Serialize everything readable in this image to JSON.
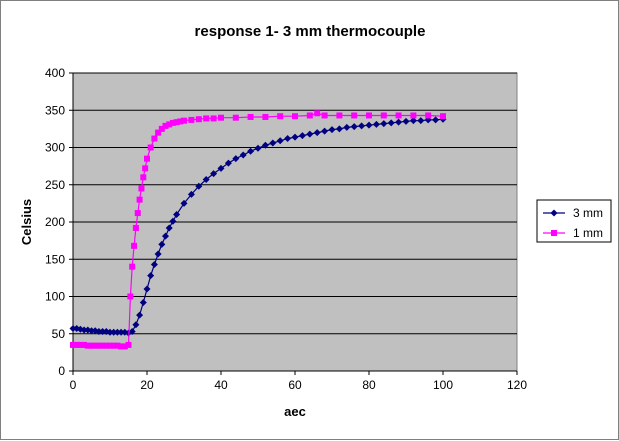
{
  "chart_data": {
    "type": "line",
    "title": "response 1- 3 mm thermocouple",
    "xlabel": "aec",
    "ylabel": "Celsius",
    "xlim": [
      0,
      120
    ],
    "ylim": [
      0,
      400
    ],
    "xticks": [
      0,
      20,
      40,
      60,
      80,
      100,
      120
    ],
    "yticks": [
      0,
      50,
      100,
      150,
      200,
      250,
      300,
      350,
      400
    ],
    "grid": "horizontal",
    "plot_background": "#c0c0c0",
    "legend_position": "right",
    "series": [
      {
        "name": "3 mm",
        "color": "#000080",
        "marker": "diamond",
        "points": [
          [
            0,
            57
          ],
          [
            1,
            57
          ],
          [
            2,
            56
          ],
          [
            3,
            55
          ],
          [
            4,
            55
          ],
          [
            5,
            54
          ],
          [
            6,
            54
          ],
          [
            7,
            53
          ],
          [
            8,
            53
          ],
          [
            9,
            53
          ],
          [
            10,
            52
          ],
          [
            11,
            52
          ],
          [
            12,
            52
          ],
          [
            13,
            52
          ],
          [
            14,
            52
          ],
          [
            15,
            51
          ],
          [
            16,
            53
          ],
          [
            17,
            62
          ],
          [
            18,
            75
          ],
          [
            19,
            92
          ],
          [
            20,
            110
          ],
          [
            21,
            128
          ],
          [
            22,
            143
          ],
          [
            23,
            157
          ],
          [
            24,
            170
          ],
          [
            25,
            181
          ],
          [
            26,
            192
          ],
          [
            27,
            201
          ],
          [
            28,
            210
          ],
          [
            30,
            225
          ],
          [
            32,
            237
          ],
          [
            34,
            248
          ],
          [
            36,
            257
          ],
          [
            38,
            265
          ],
          [
            40,
            272
          ],
          [
            42,
            279
          ],
          [
            44,
            285
          ],
          [
            46,
            290
          ],
          [
            48,
            295
          ],
          [
            50,
            299
          ],
          [
            52,
            303
          ],
          [
            54,
            306
          ],
          [
            56,
            309
          ],
          [
            58,
            312
          ],
          [
            60,
            314
          ],
          [
            62,
            316
          ],
          [
            64,
            318
          ],
          [
            66,
            320
          ],
          [
            68,
            322
          ],
          [
            70,
            324
          ],
          [
            72,
            325
          ],
          [
            74,
            327
          ],
          [
            76,
            328
          ],
          [
            78,
            329
          ],
          [
            80,
            330
          ],
          [
            82,
            331
          ],
          [
            84,
            332
          ],
          [
            86,
            333
          ],
          [
            88,
            334
          ],
          [
            90,
            335
          ],
          [
            92,
            336
          ],
          [
            94,
            336
          ],
          [
            96,
            337
          ],
          [
            98,
            337
          ],
          [
            100,
            338
          ]
        ]
      },
      {
        "name": "1 mm",
        "color": "#ff00ff",
        "marker": "square",
        "points": [
          [
            0,
            35
          ],
          [
            1,
            35
          ],
          [
            2,
            35
          ],
          [
            3,
            35
          ],
          [
            4,
            34
          ],
          [
            5,
            34
          ],
          [
            6,
            34
          ],
          [
            7,
            34
          ],
          [
            8,
            34
          ],
          [
            9,
            34
          ],
          [
            10,
            34
          ],
          [
            11,
            34
          ],
          [
            12,
            34
          ],
          [
            13,
            33
          ],
          [
            14,
            33
          ],
          [
            15,
            35
          ],
          [
            15.5,
            100
          ],
          [
            16,
            140
          ],
          [
            16.5,
            168
          ],
          [
            17,
            192
          ],
          [
            17.5,
            212
          ],
          [
            18,
            230
          ],
          [
            18.5,
            245
          ],
          [
            19,
            260
          ],
          [
            19.5,
            272
          ],
          [
            20,
            285
          ],
          [
            21,
            300
          ],
          [
            22,
            312
          ],
          [
            23,
            320
          ],
          [
            24,
            325
          ],
          [
            25,
            329
          ],
          [
            26,
            331
          ],
          [
            27,
            333
          ],
          [
            28,
            334
          ],
          [
            29,
            335
          ],
          [
            30,
            336
          ],
          [
            32,
            337
          ],
          [
            34,
            338
          ],
          [
            36,
            339
          ],
          [
            38,
            339
          ],
          [
            40,
            340
          ],
          [
            44,
            340
          ],
          [
            48,
            341
          ],
          [
            52,
            341
          ],
          [
            56,
            342
          ],
          [
            60,
            342
          ],
          [
            64,
            343
          ],
          [
            66,
            346
          ],
          [
            68,
            343
          ],
          [
            72,
            343
          ],
          [
            76,
            343
          ],
          [
            80,
            343
          ],
          [
            84,
            343
          ],
          [
            88,
            343
          ],
          [
            92,
            343
          ],
          [
            96,
            343
          ],
          [
            100,
            342
          ]
        ]
      }
    ]
  }
}
